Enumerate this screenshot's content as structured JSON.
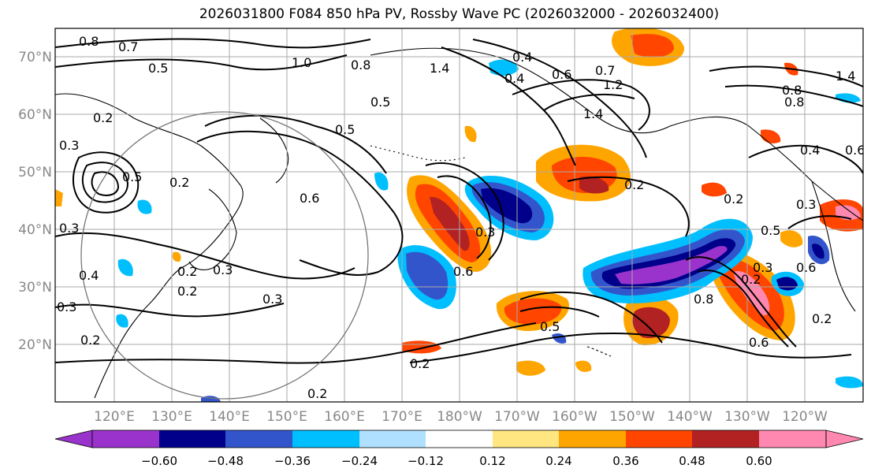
{
  "title": "2026031800 F084 850 hPa PV, Rossby Wave PC (2026032000 - 2026032400)",
  "lat_labels": [
    "70°N",
    "60°N",
    "50°N",
    "40°N",
    "30°N",
    "20°N"
  ],
  "lon_labels": [
    "120°E",
    "130°E",
    "140°E",
    "150°E",
    "160°E",
    "170°E",
    "180°W",
    "170°W",
    "160°W",
    "150°W",
    "140°W",
    "130°W",
    "120°W"
  ],
  "colorbar": {
    "ticks": [
      "−0.60",
      "−0.48",
      "−0.36",
      "−0.24",
      "−0.12",
      "0.12",
      "0.24",
      "0.36",
      "0.48",
      "0.60"
    ],
    "colors": [
      "#9933cc",
      "#00008b",
      "#3355cc",
      "#00bfff",
      "#b0e0ff",
      "#ffffff",
      "#ffe680",
      "#ffa500",
      "#ff4500",
      "#b22222",
      "#ff88b0"
    ]
  },
  "contour_labels": [
    "0.8",
    "0.7",
    "0.5",
    "0.2",
    "0.3",
    "0.2",
    "0.5",
    "0.6",
    "0.3",
    "1.0",
    "0.8",
    "1.4",
    "0.5",
    "0.4",
    "0.6",
    "0.7",
    "1.2",
    "1.4",
    "0.8",
    "1.4",
    "0.4",
    "0.6",
    "0.6",
    "0.2",
    "0.2",
    "0.3",
    "0.5",
    "0.3",
    "0.6",
    "0.8",
    "0.3",
    "0.2",
    "0.5",
    "0.4",
    "0.2",
    "0.3",
    "0.2",
    "0.3",
    "0.2",
    "0.6",
    "0.2",
    "0.4",
    "0.3",
    "0.5",
    "0.8",
    "0.2",
    "0.2"
  ]
}
